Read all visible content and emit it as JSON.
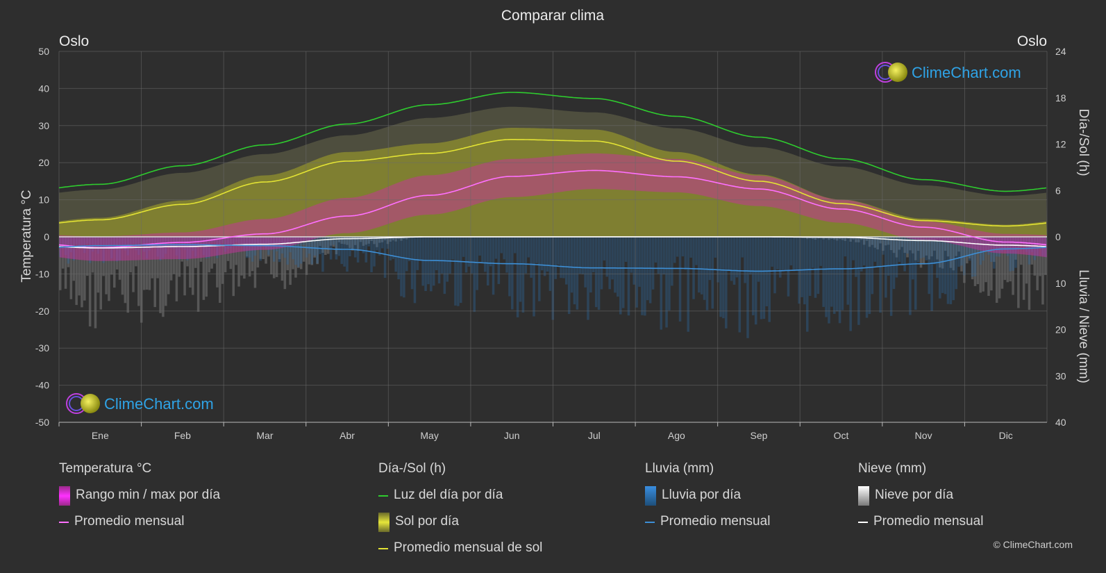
{
  "chart_data": {
    "type": "line",
    "title": "Comparar clima",
    "location_left": "Oslo",
    "location_right": "Oslo",
    "ylabel_left": "Temperatura °C",
    "ylabel_right_top": "Día-/Sol (h)",
    "ylabel_right_bottom": "Lluvia / Nieve (mm)",
    "ylim_left": [
      -50,
      50
    ],
    "left_ticks": [
      "50",
      "40",
      "30",
      "20",
      "10",
      "0",
      "-10",
      "-20",
      "-30",
      "-40",
      "-50"
    ],
    "right_top_ticks": [
      "24",
      "18",
      "12",
      "6",
      "0"
    ],
    "right_bottom_ticks": [
      "10",
      "20",
      "30",
      "40"
    ],
    "ylim_sun_h": [
      0,
      24
    ],
    "ylim_precip_mm": [
      0,
      40
    ],
    "months": [
      "Ene",
      "Feb",
      "Mar",
      "Abr",
      "May",
      "Jun",
      "Jul",
      "Ago",
      "Sep",
      "Oct",
      "Nov",
      "Dic"
    ],
    "grid": true,
    "series": [
      {
        "key": "daylight",
        "color": "#2ecc2e",
        "values": [
          6.8,
          9.2,
          11.9,
          14.6,
          17.1,
          18.7,
          17.9,
          15.6,
          12.9,
          10.1,
          7.4,
          5.9
        ]
      },
      {
        "key": "sun_monthly",
        "color": "#e3e334",
        "values": [
          2.2,
          4.2,
          7.1,
          9.8,
          10.8,
          12.6,
          12.4,
          9.8,
          7.2,
          4.3,
          2.1,
          1.4
        ]
      },
      {
        "key": "temp_monthly",
        "color": "#ff70ff",
        "values": [
          -2.9,
          -1.5,
          0.8,
          5.6,
          11.2,
          16.3,
          17.9,
          16.2,
          12.9,
          7.5,
          2.6,
          -1.4
        ]
      },
      {
        "key": "snow_monthly",
        "color": "#ffffff",
        "values": [
          2.4,
          2.1,
          1.6,
          0.4,
          0.0,
          0.0,
          0.0,
          0.0,
          0.0,
          0.1,
          0.8,
          1.8
        ]
      },
      {
        "key": "rain_monthly",
        "color": "#3d8fd6",
        "values": [
          1.9,
          1.7,
          1.9,
          2.7,
          5.1,
          5.8,
          6.7,
          6.8,
          7.4,
          6.9,
          5.8,
          2.6
        ]
      }
    ],
    "bands": {
      "temp_max": [
        0.1,
        1.2,
        4.8,
        10.5,
        16.6,
        21.0,
        22.5,
        21.0,
        16.5,
        10.0,
        4.2,
        0.8
      ],
      "temp_min": [
        -6.5,
        -6.0,
        -3.5,
        1.0,
        6.0,
        10.7,
        12.9,
        12.0,
        8.3,
        3.8,
        -0.8,
        -4.5
      ]
    },
    "colors": {
      "temp_band": "#c8319e",
      "sun_band": "#a0a02a",
      "daylight_band": "#5a5a44",
      "rain_bar": "#2d6aa0",
      "snow_bar": "#8a8a8a"
    }
  },
  "legend": {
    "temp": {
      "header": "Temperatura °C",
      "item1": "Rango min / max por día",
      "item2": "Promedio mensual"
    },
    "sun": {
      "header": "Día-/Sol (h)",
      "item1": "Luz del día por día",
      "item2": "Sol por día",
      "item3": "Promedio mensual de sol"
    },
    "rain": {
      "header": "Lluvia (mm)",
      "item1": "Lluvia por día",
      "item2": "Promedio mensual"
    },
    "snow": {
      "header": "Nieve (mm)",
      "item1": "Nieve por día",
      "item2": "Promedio mensual"
    }
  },
  "watermark": "ClimeChart.com",
  "copyright": "© ClimeChart.com"
}
